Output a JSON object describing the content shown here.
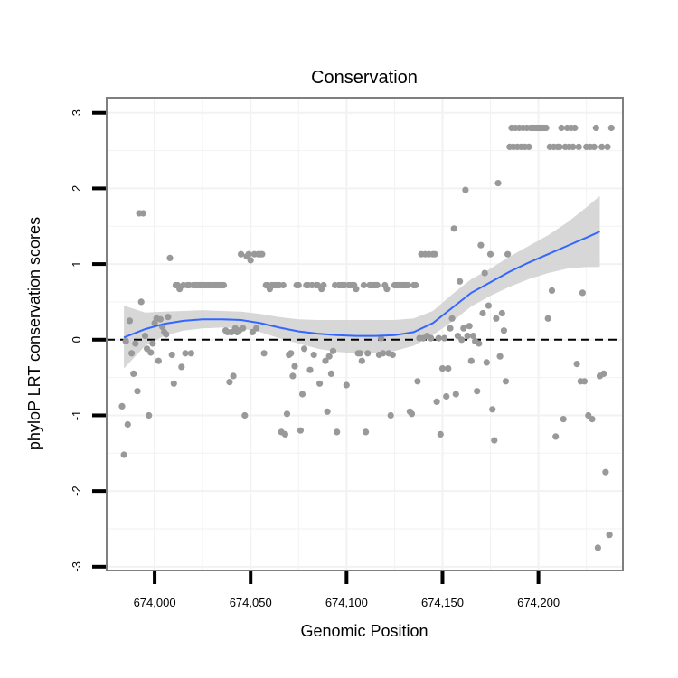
{
  "chart_data": {
    "type": "scatter",
    "title": "Conservation",
    "xlabel": "Genomic Position",
    "ylabel": "phyloP LRT conservation scores",
    "xlim": [
      673980,
      674238
    ],
    "ylim": [
      -3.05,
      3.2
    ],
    "x_ticks": [
      674000,
      674050,
      674100,
      674150,
      674200
    ],
    "x_tick_labels": [
      "674,000",
      "674,050",
      "674,100",
      "674,150",
      "674,200"
    ],
    "y_ticks": [
      -3,
      -2,
      -1,
      0,
      1,
      2,
      3
    ],
    "y_tick_labels": [
      "-3",
      "-2",
      "-1",
      "0",
      "1",
      "2",
      "3"
    ],
    "reference_line": {
      "y": 0,
      "style": "dashed"
    },
    "grid": true,
    "colors": {
      "points": "#999999",
      "smooth_line": "#3366ff",
      "confidence_band": "#d3d3d3",
      "panel_border": "#7f7f7f",
      "grid": "#f2f2f2"
    },
    "series": [
      {
        "name": "phyloP scores",
        "kind": "points",
        "points": [
          [
            673983,
            -0.88
          ],
          [
            673984,
            -1.52
          ],
          [
            673985,
            -0.02
          ],
          [
            673986,
            -1.12
          ],
          [
            673987,
            0.25
          ],
          [
            673988,
            -0.18
          ],
          [
            673989,
            -0.45
          ],
          [
            673990,
            -0.05
          ],
          [
            673991,
            -0.68
          ],
          [
            673992,
            1.67
          ],
          [
            673993,
            0.5
          ],
          [
            673994,
            1.67
          ],
          [
            673995,
            0.05
          ],
          [
            673996,
            -0.12
          ],
          [
            673997,
            -1.0
          ],
          [
            673998,
            -0.17
          ],
          [
            673999,
            -0.05
          ],
          [
            674000,
            0.22
          ],
          [
            674001,
            0.28
          ],
          [
            674002,
            -0.28
          ],
          [
            674003,
            0.27
          ],
          [
            674004,
            0.17
          ],
          [
            674005,
            0.1
          ],
          [
            674006,
            0.07
          ],
          [
            674007,
            0.3
          ],
          [
            674008,
            1.08
          ],
          [
            674009,
            -0.2
          ],
          [
            674010,
            -0.58
          ],
          [
            674011,
            0.72
          ],
          [
            674012,
            0.72
          ],
          [
            674013,
            0.67
          ],
          [
            674014,
            -0.36
          ],
          [
            674015,
            0.72
          ],
          [
            674016,
            -0.18
          ],
          [
            674017,
            0.72
          ],
          [
            674018,
            0.72
          ],
          [
            674019,
            -0.18
          ],
          [
            674020,
            0.72
          ],
          [
            674021,
            0.72
          ],
          [
            674022,
            0.72
          ],
          [
            674023,
            0.72
          ],
          [
            674024,
            0.72
          ],
          [
            674025,
            0.72
          ],
          [
            674026,
            0.72
          ],
          [
            674027,
            0.72
          ],
          [
            674028,
            0.72
          ],
          [
            674029,
            0.72
          ],
          [
            674030,
            0.72
          ],
          [
            674031,
            0.72
          ],
          [
            674032,
            0.72
          ],
          [
            674033,
            0.72
          ],
          [
            674034,
            0.72
          ],
          [
            674035,
            0.72
          ],
          [
            674036,
            0.72
          ],
          [
            674037,
            0.12
          ],
          [
            674038,
            0.1
          ],
          [
            674039,
            -0.56
          ],
          [
            674040,
            0.1
          ],
          [
            674041,
            -0.48
          ],
          [
            674042,
            0.15
          ],
          [
            674043,
            0.1
          ],
          [
            674044,
            0.12
          ],
          [
            674045,
            1.13
          ],
          [
            674046,
            0.15
          ],
          [
            674047,
            -1.0
          ],
          [
            674048,
            1.1
          ],
          [
            674049,
            1.13
          ],
          [
            674050,
            1.05
          ],
          [
            674051,
            0.1
          ],
          [
            674052,
            1.13
          ],
          [
            674053,
            0.15
          ],
          [
            674054,
            1.13
          ],
          [
            674055,
            1.13
          ],
          [
            674056,
            1.13
          ],
          [
            674057,
            -0.18
          ],
          [
            674058,
            0.72
          ],
          [
            674059,
            0.72
          ],
          [
            674060,
            0.67
          ],
          [
            674061,
            0.72
          ],
          [
            674062,
            0.72
          ],
          [
            674063,
            0.72
          ],
          [
            674064,
            0.72
          ],
          [
            674065,
            0.72
          ],
          [
            674066,
            -1.22
          ],
          [
            674067,
            0.72
          ],
          [
            674068,
            -1.25
          ],
          [
            674069,
            -0.98
          ],
          [
            674070,
            -0.2
          ],
          [
            674071,
            -0.18
          ],
          [
            674072,
            -0.48
          ],
          [
            674073,
            -0.35
          ],
          [
            674074,
            0.72
          ],
          [
            674075,
            0.72
          ],
          [
            674076,
            -1.2
          ],
          [
            674077,
            -0.72
          ],
          [
            674078,
            -0.12
          ],
          [
            674079,
            0.72
          ],
          [
            674080,
            0.72
          ],
          [
            674081,
            -0.4
          ],
          [
            674082,
            0.72
          ],
          [
            674083,
            -0.2
          ],
          [
            674084,
            0.72
          ],
          [
            674085,
            0.72
          ],
          [
            674086,
            -0.58
          ],
          [
            674087,
            0.67
          ],
          [
            674088,
            0.72
          ],
          [
            674089,
            -0.28
          ],
          [
            674090,
            -0.95
          ],
          [
            674091,
            -0.22
          ],
          [
            674092,
            -0.45
          ],
          [
            674093,
            -0.15
          ],
          [
            674094,
            0.72
          ],
          [
            674095,
            -1.22
          ],
          [
            674096,
            0.72
          ],
          [
            674097,
            0.72
          ],
          [
            674098,
            0.72
          ],
          [
            674099,
            0.72
          ],
          [
            674100,
            -0.6
          ],
          [
            674101,
            0.72
          ],
          [
            674102,
            0.72
          ],
          [
            674103,
            0.72
          ],
          [
            674104,
            0.72
          ],
          [
            674105,
            0.67
          ],
          [
            674106,
            -0.18
          ],
          [
            674107,
            -0.18
          ],
          [
            674108,
            -0.28
          ],
          [
            674109,
            0.72
          ],
          [
            674110,
            -1.22
          ],
          [
            674111,
            -0.18
          ],
          [
            674112,
            0.72
          ],
          [
            674113,
            0.72
          ],
          [
            674114,
            0.72
          ],
          [
            674115,
            0.72
          ],
          [
            674116,
            0.72
          ],
          [
            674117,
            -0.2
          ],
          [
            674118,
            0.02
          ],
          [
            674119,
            -0.18
          ],
          [
            674120,
            0.72
          ],
          [
            674121,
            0.67
          ],
          [
            674122,
            -0.18
          ],
          [
            674123,
            -1.0
          ],
          [
            674124,
            -0.2
          ],
          [
            674125,
            0.72
          ],
          [
            674126,
            0.72
          ],
          [
            674127,
            0.72
          ],
          [
            674128,
            0.72
          ],
          [
            674129,
            0.72
          ],
          [
            674130,
            0.72
          ],
          [
            674131,
            0.72
          ],
          [
            674132,
            0.72
          ],
          [
            674133,
            -0.95
          ],
          [
            674134,
            -0.98
          ],
          [
            674135,
            0.72
          ],
          [
            674136,
            0.72
          ],
          [
            674137,
            -0.55
          ],
          [
            674138,
            0.02
          ],
          [
            674139,
            1.13
          ],
          [
            674140,
            0.02
          ],
          [
            674141,
            1.13
          ],
          [
            674142,
            0.05
          ],
          [
            674143,
            1.13
          ],
          [
            674144,
            0.02
          ],
          [
            674145,
            1.13
          ],
          [
            674146,
            1.13
          ],
          [
            674147,
            -0.82
          ],
          [
            674148,
            0.02
          ],
          [
            674149,
            -1.25
          ],
          [
            674150,
            -0.38
          ],
          [
            674151,
            0.02
          ],
          [
            674152,
            -0.75
          ],
          [
            674153,
            -0.38
          ],
          [
            674154,
            0.15
          ],
          [
            674155,
            0.28
          ],
          [
            674156,
            1.47
          ],
          [
            674157,
            -0.72
          ],
          [
            674158,
            0.05
          ],
          [
            674159,
            0.77
          ],
          [
            674160,
            0.0
          ],
          [
            674161,
            0.15
          ],
          [
            674162,
            1.98
          ],
          [
            674163,
            0.05
          ],
          [
            674164,
            0.18
          ],
          [
            674165,
            -0.28
          ],
          [
            674166,
            0.05
          ],
          [
            674167,
            -0.02
          ],
          [
            674168,
            -0.68
          ],
          [
            674169,
            -0.05
          ],
          [
            674170,
            1.25
          ],
          [
            674171,
            0.35
          ],
          [
            674172,
            0.88
          ],
          [
            674173,
            -0.3
          ],
          [
            674174,
            0.45
          ],
          [
            674175,
            1.13
          ],
          [
            674176,
            -0.92
          ],
          [
            674177,
            -1.33
          ],
          [
            674178,
            0.28
          ],
          [
            674179,
            2.07
          ],
          [
            674180,
            -0.22
          ],
          [
            674181,
            0.35
          ],
          [
            674182,
            0.12
          ],
          [
            674183,
            -0.55
          ],
          [
            674184,
            1.13
          ],
          [
            674185,
            2.55
          ],
          [
            674186,
            2.8
          ],
          [
            674187,
            2.55
          ],
          [
            674188,
            2.8
          ],
          [
            674189,
            2.55
          ],
          [
            674190,
            2.8
          ],
          [
            674191,
            2.55
          ],
          [
            674192,
            2.8
          ],
          [
            674193,
            2.55
          ],
          [
            674194,
            2.8
          ],
          [
            674195,
            2.55
          ],
          [
            674196,
            2.8
          ],
          [
            674197,
            2.8
          ],
          [
            674198,
            2.8
          ],
          [
            674199,
            2.8
          ],
          [
            674200,
            2.8
          ],
          [
            674201,
            2.8
          ],
          [
            674202,
            2.8
          ],
          [
            674203,
            2.8
          ],
          [
            674204,
            2.8
          ],
          [
            674205,
            0.28
          ],
          [
            674206,
            2.55
          ],
          [
            674207,
            0.65
          ],
          [
            674208,
            2.55
          ],
          [
            674209,
            -1.28
          ],
          [
            674210,
            2.55
          ],
          [
            674211,
            2.55
          ],
          [
            674212,
            2.8
          ],
          [
            674213,
            -1.05
          ],
          [
            674214,
            2.55
          ],
          [
            674215,
            2.8
          ],
          [
            674216,
            2.55
          ],
          [
            674217,
            2.8
          ],
          [
            674218,
            2.55
          ],
          [
            674219,
            2.8
          ],
          [
            674220,
            -0.32
          ],
          [
            674221,
            2.55
          ],
          [
            674222,
            -0.55
          ],
          [
            674223,
            0.62
          ],
          [
            674224,
            -0.55
          ],
          [
            674225,
            2.55
          ],
          [
            674226,
            -1.0
          ],
          [
            674227,
            2.55
          ],
          [
            674228,
            -1.05
          ],
          [
            674229,
            2.55
          ],
          [
            674230,
            2.8
          ],
          [
            674231,
            -2.75
          ],
          [
            674232,
            -0.48
          ],
          [
            674233,
            2.55
          ],
          [
            674234,
            -0.45
          ],
          [
            674235,
            -1.75
          ],
          [
            674236,
            2.55
          ],
          [
            674237,
            -2.58
          ],
          [
            674238,
            2.8
          ]
        ]
      },
      {
        "name": "smoothed fit",
        "kind": "line",
        "points": [
          [
            673984,
            0.03
          ],
          [
            673995,
            0.14
          ],
          [
            674005,
            0.21
          ],
          [
            674015,
            0.25
          ],
          [
            674025,
            0.27
          ],
          [
            674035,
            0.27
          ],
          [
            674045,
            0.26
          ],
          [
            674055,
            0.22
          ],
          [
            674065,
            0.16
          ],
          [
            674075,
            0.11
          ],
          [
            674085,
            0.08
          ],
          [
            674095,
            0.06
          ],
          [
            674105,
            0.05
          ],
          [
            674115,
            0.05
          ],
          [
            674125,
            0.06
          ],
          [
            674135,
            0.1
          ],
          [
            674145,
            0.22
          ],
          [
            674155,
            0.42
          ],
          [
            674165,
            0.62
          ],
          [
            674175,
            0.76
          ],
          [
            674185,
            0.9
          ],
          [
            674195,
            1.02
          ],
          [
            674205,
            1.13
          ],
          [
            674215,
            1.24
          ],
          [
            674225,
            1.35
          ],
          [
            674232,
            1.43
          ]
        ],
        "band_lower": [
          -0.38,
          -0.08,
          0.05,
          0.12,
          0.15,
          0.16,
          0.15,
          0.1,
          0.02,
          -0.05,
          -0.12,
          -0.16,
          -0.18,
          -0.18,
          -0.15,
          -0.08,
          0.06,
          0.24,
          0.44,
          0.58,
          0.7,
          0.8,
          0.88,
          0.94,
          0.96,
          0.96
        ],
        "band_upper": [
          0.45,
          0.36,
          0.37,
          0.38,
          0.39,
          0.38,
          0.37,
          0.34,
          0.3,
          0.27,
          0.26,
          0.26,
          0.26,
          0.26,
          0.26,
          0.28,
          0.38,
          0.6,
          0.8,
          0.94,
          1.1,
          1.24,
          1.38,
          1.55,
          1.75,
          1.9
        ]
      }
    ]
  }
}
